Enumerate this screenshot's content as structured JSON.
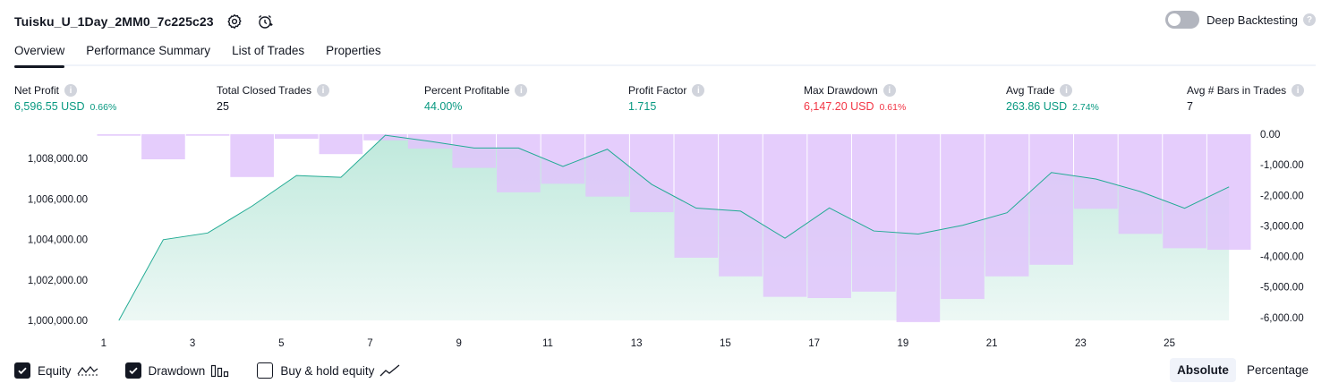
{
  "header": {
    "strategy_title": "Tuisku_U_1Day_2MM0_7c225c23",
    "deep_backtesting_label": "Deep Backtesting",
    "deep_backtesting_on": false,
    "help_glyph": "?"
  },
  "tabs": [
    {
      "label": "Overview",
      "active": true
    },
    {
      "label": "Performance Summary",
      "active": false
    },
    {
      "label": "List of Trades",
      "active": false
    },
    {
      "label": "Properties",
      "active": false
    }
  ],
  "metrics": [
    {
      "label": "Net Profit",
      "value": "6,596.55 USD",
      "pct": "0.66%",
      "tone": "pos"
    },
    {
      "label": "Total Closed Trades",
      "value": "25",
      "pct": "",
      "tone": "neu"
    },
    {
      "label": "Percent Profitable",
      "value": "44.00%",
      "pct": "",
      "tone": "pos"
    },
    {
      "label": "Profit Factor",
      "value": "1.715",
      "pct": "",
      "tone": "pos"
    },
    {
      "label": "Max Drawdown",
      "value": "6,147.20 USD",
      "pct": "0.61%",
      "tone": "neg"
    },
    {
      "label": "Avg Trade",
      "value": "263.86 USD",
      "pct": "2.74%",
      "tone": "pos"
    },
    {
      "label": "Avg # Bars in Trades",
      "value": "7",
      "pct": "",
      "tone": "neu"
    }
  ],
  "colors": {
    "equity_line": "#22ab94",
    "equity_fill": "#d9f2ea",
    "drawdown_bar": "#e1c4fc",
    "positive": "#089981",
    "negative": "#f23645"
  },
  "chart_data": {
    "type": "area",
    "x": [
      1,
      2,
      3,
      4,
      5,
      6,
      7,
      8,
      9,
      10,
      11,
      12,
      13,
      14,
      15,
      16,
      17,
      18,
      19,
      20,
      21,
      22,
      23,
      24,
      25,
      26
    ],
    "x_ticks": [
      "1",
      "3",
      "5",
      "7",
      "9",
      "11",
      "13",
      "15",
      "17",
      "19",
      "21",
      "23",
      "25"
    ],
    "y_left_ticks": [
      "1,000,000.00",
      "1,002,000.00",
      "1,004,000.00",
      "1,006,000.00",
      "1,008,000.00"
    ],
    "y_right_ticks": [
      "0.00",
      "-1,000.00",
      "-2,000.00",
      "-3,000.00",
      "-4,000.00",
      "-5,000.00",
      "-6,000.00"
    ],
    "y_left_range": [
      1000000,
      1009200
    ],
    "y_right_range": [
      0,
      -6150
    ],
    "series": [
      {
        "name": "Equity",
        "kind": "line-area",
        "axis": "left",
        "values": [
          1000000,
          1003990,
          1004320,
          1005650,
          1007160,
          1007070,
          1009150,
          1008850,
          1008520,
          1008520,
          1007610,
          1008460,
          1006720,
          1005550,
          1005400,
          1004060,
          1005560,
          1004420,
          1004270,
          1004700,
          1005320,
          1007310,
          1006990,
          1006370,
          1005540,
          1006600
        ]
      },
      {
        "name": "Drawdown",
        "kind": "bar",
        "axis": "right",
        "values": [
          -50,
          -820,
          -50,
          -1400,
          -150,
          -650,
          -200,
          -470,
          -1100,
          -1900,
          -1620,
          -2040,
          -2550,
          -4040,
          -4650,
          -5320,
          -5360,
          -5150,
          -6147,
          -5390,
          -4650,
          -4270,
          -2440,
          -3260,
          -3730,
          -3780
        ]
      }
    ],
    "legend_placement": "bottom-left",
    "grid": true
  },
  "legend": [
    {
      "label": "Equity",
      "checked": true,
      "icon": "equity-line-icon"
    },
    {
      "label": "Drawdown",
      "checked": true,
      "icon": "drawdown-bars-icon"
    },
    {
      "label": "Buy & hold equity",
      "checked": false,
      "icon": "buy-hold-line-icon"
    }
  ],
  "mode": {
    "absolute_label": "Absolute",
    "percentage_label": "Percentage",
    "selected": "Absolute"
  }
}
